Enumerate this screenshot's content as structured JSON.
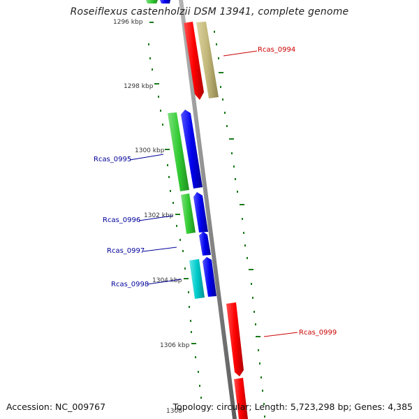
{
  "title": "Roseiflexus castenholzii DSM 13941, complete genome",
  "accession": "Accession: NC_009767",
  "summary": "Topology: circular; Length: 5,723,298 bp; Genes: 4,385",
  "kbp_ticks": [
    {
      "text": "1296 kbp"
    },
    {
      "text": "1298 kbp"
    },
    {
      "text": "1300 kbp"
    },
    {
      "text": "1302 kbp"
    },
    {
      "text": "1304 kbp"
    },
    {
      "text": "1306 kbp"
    },
    {
      "text": "1308"
    }
  ],
  "gene_labels": [
    {
      "text": "Rcas_0994",
      "color": "#cc0000"
    },
    {
      "text": "Rcas_0995",
      "color": "#000099"
    },
    {
      "text": "Rcas_0996",
      "color": "#000099"
    },
    {
      "text": "Rcas_0997",
      "color": "#000099"
    },
    {
      "text": "Rcas_0998",
      "color": "#000099"
    },
    {
      "text": "Rcas_0999",
      "color": "#cc0000"
    }
  ],
  "colors": {
    "backbone": "#8c8c8c",
    "tick": "#1a7a1a",
    "red_gene": "#ff0000",
    "khaki_gene": "#c2b77a",
    "green_gene": "#33cc33",
    "blue_gene": "#0000ee",
    "cyan_gene": "#00cccc"
  }
}
